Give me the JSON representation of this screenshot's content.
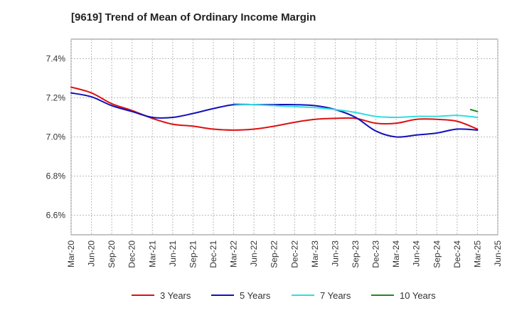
{
  "chart_data": {
    "type": "line",
    "title": "[9619]  Trend of Mean of Ordinary Income Margin",
    "xlabel": "",
    "ylabel": "",
    "ylim": [
      6.5,
      7.5
    ],
    "y_ticks": [
      6.6,
      6.8,
      7.0,
      7.2,
      7.4
    ],
    "y_tick_labels": [
      "6.6%",
      "6.8%",
      "7.0%",
      "7.2%",
      "7.4%"
    ],
    "x_ticks": [
      "Mar-20",
      "Jun-20",
      "Sep-20",
      "Dec-20",
      "Mar-21",
      "Jun-21",
      "Sep-21",
      "Dec-21",
      "Mar-22",
      "Jun-22",
      "Sep-22",
      "Dec-22",
      "Mar-23",
      "Jun-23",
      "Sep-23",
      "Dec-23",
      "Mar-24",
      "Jun-24",
      "Sep-24",
      "Dec-24",
      "Mar-25",
      "Jun-25"
    ],
    "grid": true,
    "legend_position": "bottom",
    "series": [
      {
        "name": "3 Years",
        "color": "#dd1111",
        "x": [
          "Mar-20",
          "Jun-20",
          "Sep-20",
          "Dec-20",
          "Mar-21",
          "Jun-21",
          "Sep-21",
          "Dec-21",
          "Mar-22",
          "Jun-22",
          "Sep-22",
          "Dec-22",
          "Mar-23",
          "Jun-23",
          "Sep-23",
          "Dec-23",
          "Mar-24",
          "Jun-24",
          "Sep-24",
          "Dec-24",
          "Mar-25"
        ],
        "values": [
          7.255,
          7.225,
          7.17,
          7.135,
          7.095,
          7.065,
          7.055,
          7.04,
          7.035,
          7.04,
          7.055,
          7.075,
          7.09,
          7.095,
          7.095,
          7.07,
          7.07,
          7.09,
          7.09,
          7.08,
          7.04
        ]
      },
      {
        "name": "5 Years",
        "color": "#1111bb",
        "x": [
          "Mar-20",
          "Jun-20",
          "Sep-20",
          "Dec-20",
          "Mar-21",
          "Jun-21",
          "Sep-21",
          "Dec-21",
          "Mar-22",
          "Jun-22",
          "Sep-22",
          "Dec-22",
          "Mar-23",
          "Jun-23",
          "Sep-23",
          "Dec-23",
          "Mar-24",
          "Jun-24",
          "Sep-24",
          "Dec-24",
          "Mar-25"
        ],
        "values": [
          7.225,
          7.205,
          7.16,
          7.13,
          7.1,
          7.1,
          7.12,
          7.145,
          7.165,
          7.165,
          7.165,
          7.165,
          7.16,
          7.14,
          7.1,
          7.03,
          7.0,
          7.01,
          7.02,
          7.04,
          7.035
        ]
      },
      {
        "name": "7 Years",
        "color": "#33dddd",
        "x": [
          "Mar-22",
          "Jun-22",
          "Sep-22",
          "Dec-22",
          "Mar-23",
          "Jun-23",
          "Sep-23",
          "Dec-23",
          "Mar-24",
          "Jun-24",
          "Sep-24",
          "Dec-24",
          "Mar-25"
        ],
        "values": [
          7.17,
          7.165,
          7.16,
          7.155,
          7.15,
          7.14,
          7.125,
          7.105,
          7.1,
          7.105,
          7.105,
          7.11,
          7.1
        ]
      },
      {
        "name": "10 Years",
        "color": "#228822",
        "x": [
          "Feb-25",
          "Mar-25"
        ],
        "values": [
          7.14,
          7.13
        ]
      }
    ]
  }
}
